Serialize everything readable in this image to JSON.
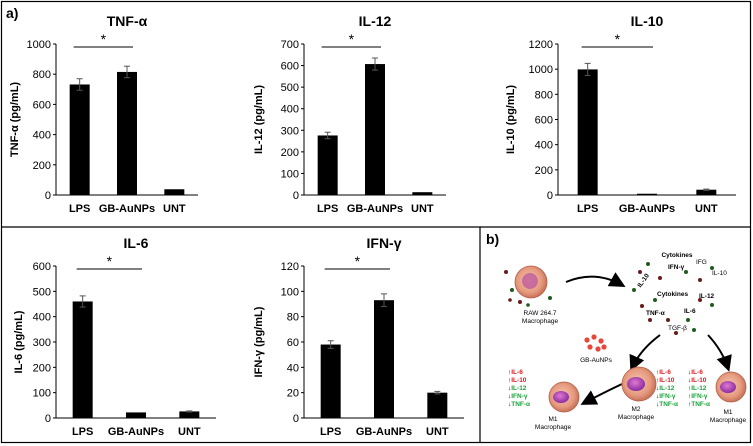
{
  "panel_labels": {
    "a": "a)",
    "b": "b)"
  },
  "chart_data": [
    {
      "type": "bar",
      "id": "tnf",
      "title": "TNF-α",
      "ylabel": "TNF-α (pg/mL)",
      "categories": [
        "LPS",
        "GB-AuNPs",
        "UNT"
      ],
      "values": [
        732,
        815,
        38
      ],
      "errors": [
        38,
        38,
        0
      ],
      "ylim": [
        0,
        1000
      ],
      "yticks": [
        "0",
        "200",
        "400",
        "600",
        "800",
        "1000"
      ],
      "significance": {
        "label": "*",
        "from": 0,
        "to": 1
      }
    },
    {
      "type": "bar",
      "id": "il12",
      "title": "IL-12",
      "ylabel": "IL-12 (pg/mL)",
      "categories": [
        "LPS",
        "GB-AuNPs",
        "UNT"
      ],
      "values": [
        276,
        607,
        13
      ],
      "errors": [
        15,
        28,
        0
      ],
      "ylim": [
        0,
        700
      ],
      "yticks": [
        "0",
        "100",
        "200",
        "300",
        "400",
        "500",
        "600",
        "700"
      ],
      "significance": {
        "label": "*",
        "from": 0,
        "to": 1
      }
    },
    {
      "type": "bar",
      "id": "il10",
      "title": "IL-10",
      "ylabel": "IL-10 (pg/mL)",
      "categories": [
        "LPS",
        "GB-AuNPs",
        "UNT"
      ],
      "values": [
        998,
        10,
        42
      ],
      "errors": [
        48,
        0,
        5
      ],
      "ylim": [
        0,
        1200
      ],
      "yticks": [
        "0",
        "200",
        "400",
        "600",
        "800",
        "1000",
        "1200"
      ],
      "significance": {
        "label": "*",
        "from": 0,
        "to": 1
      }
    },
    {
      "type": "bar",
      "id": "il6",
      "title": "IL-6",
      "ylabel": "IL-6 (pg/mL)",
      "categories": [
        "LPS",
        "GB-AuNPs",
        "UNT"
      ],
      "values": [
        460,
        22,
        26
      ],
      "errors": [
        22,
        0,
        2
      ],
      "ylim": [
        0,
        600
      ],
      "yticks": [
        "0",
        "100",
        "200",
        "300",
        "400",
        "500",
        "600"
      ],
      "significance": {
        "label": "*",
        "from": 0,
        "to": 1
      }
    },
    {
      "type": "bar",
      "id": "ifng",
      "title": "IFN-γ",
      "ylabel": "IFN-γ (pg/mL)",
      "categories": [
        "LPS",
        "GB-AuNPs",
        "UNT"
      ],
      "values": [
        58,
        93,
        20
      ],
      "errors": [
        3,
        5,
        1
      ],
      "ylim": [
        0,
        120
      ],
      "yticks": [
        "0",
        "20",
        "40",
        "60",
        "80",
        "100",
        "120"
      ],
      "significance": {
        "label": "*",
        "from": 0,
        "to": 1
      }
    }
  ],
  "schematic": {
    "raw_label_1": "RAW 264.7",
    "raw_label_2": "Macrophage",
    "cytokines_title": "Cytokines",
    "cytokines_inner": "Cytokines",
    "cyto_ifng": "IFN-γ",
    "cyto_il10": "IL-10",
    "cyto_il12": "IL-12",
    "cyto_il6": "IL-6",
    "cyto_tnfa": "TNF-α",
    "cyto_tgfb": "TGF-β",
    "cyto_top_a": "IFG",
    "cyto_top_b": "IL-10",
    "gb_label": "GB-AuNPs",
    "m1_left_1": "M1",
    "m1_left_2": "Macrophage",
    "m2_1": "M2",
    "m2_2": "Macrophage",
    "m1_right_1": "M1",
    "m1_right_2": "Macrophage",
    "list_left": [
      {
        "arrow": "↑",
        "text": "IL-6",
        "color": "#e0161b"
      },
      {
        "arrow": "↑",
        "text": "IL-10",
        "color": "#e0161b"
      },
      {
        "arrow": "↓",
        "text": "IL-12",
        "color": "#19a339"
      },
      {
        "arrow": "↓",
        "text": "IFN-γ",
        "color": "#19a339"
      },
      {
        "arrow": "↓",
        "text": "TNF-α",
        "color": "#19a339"
      }
    ],
    "list_m2": [
      {
        "arrow": "↑",
        "text": "IL-6",
        "color": "#e0161b"
      },
      {
        "arrow": "↑",
        "text": "IL-10",
        "color": "#e0161b"
      },
      {
        "arrow": "↓",
        "text": "IL-12",
        "color": "#19a339"
      },
      {
        "arrow": "↓",
        "text": "IFN-γ",
        "color": "#19a339"
      },
      {
        "arrow": "↓",
        "text": "TNF-α",
        "color": "#19a339"
      }
    ],
    "list_right": [
      {
        "arrow": "↓",
        "text": "IL-6",
        "color": "#e0161b"
      },
      {
        "arrow": "↓",
        "text": "IL-10",
        "color": "#e0161b"
      },
      {
        "arrow": "↑",
        "text": "IL-12",
        "color": "#19a339"
      },
      {
        "arrow": "↑",
        "text": "IFN-γ",
        "color": "#19a339"
      },
      {
        "arrow": "↑",
        "text": "TNF-α",
        "color": "#19a339"
      }
    ]
  }
}
